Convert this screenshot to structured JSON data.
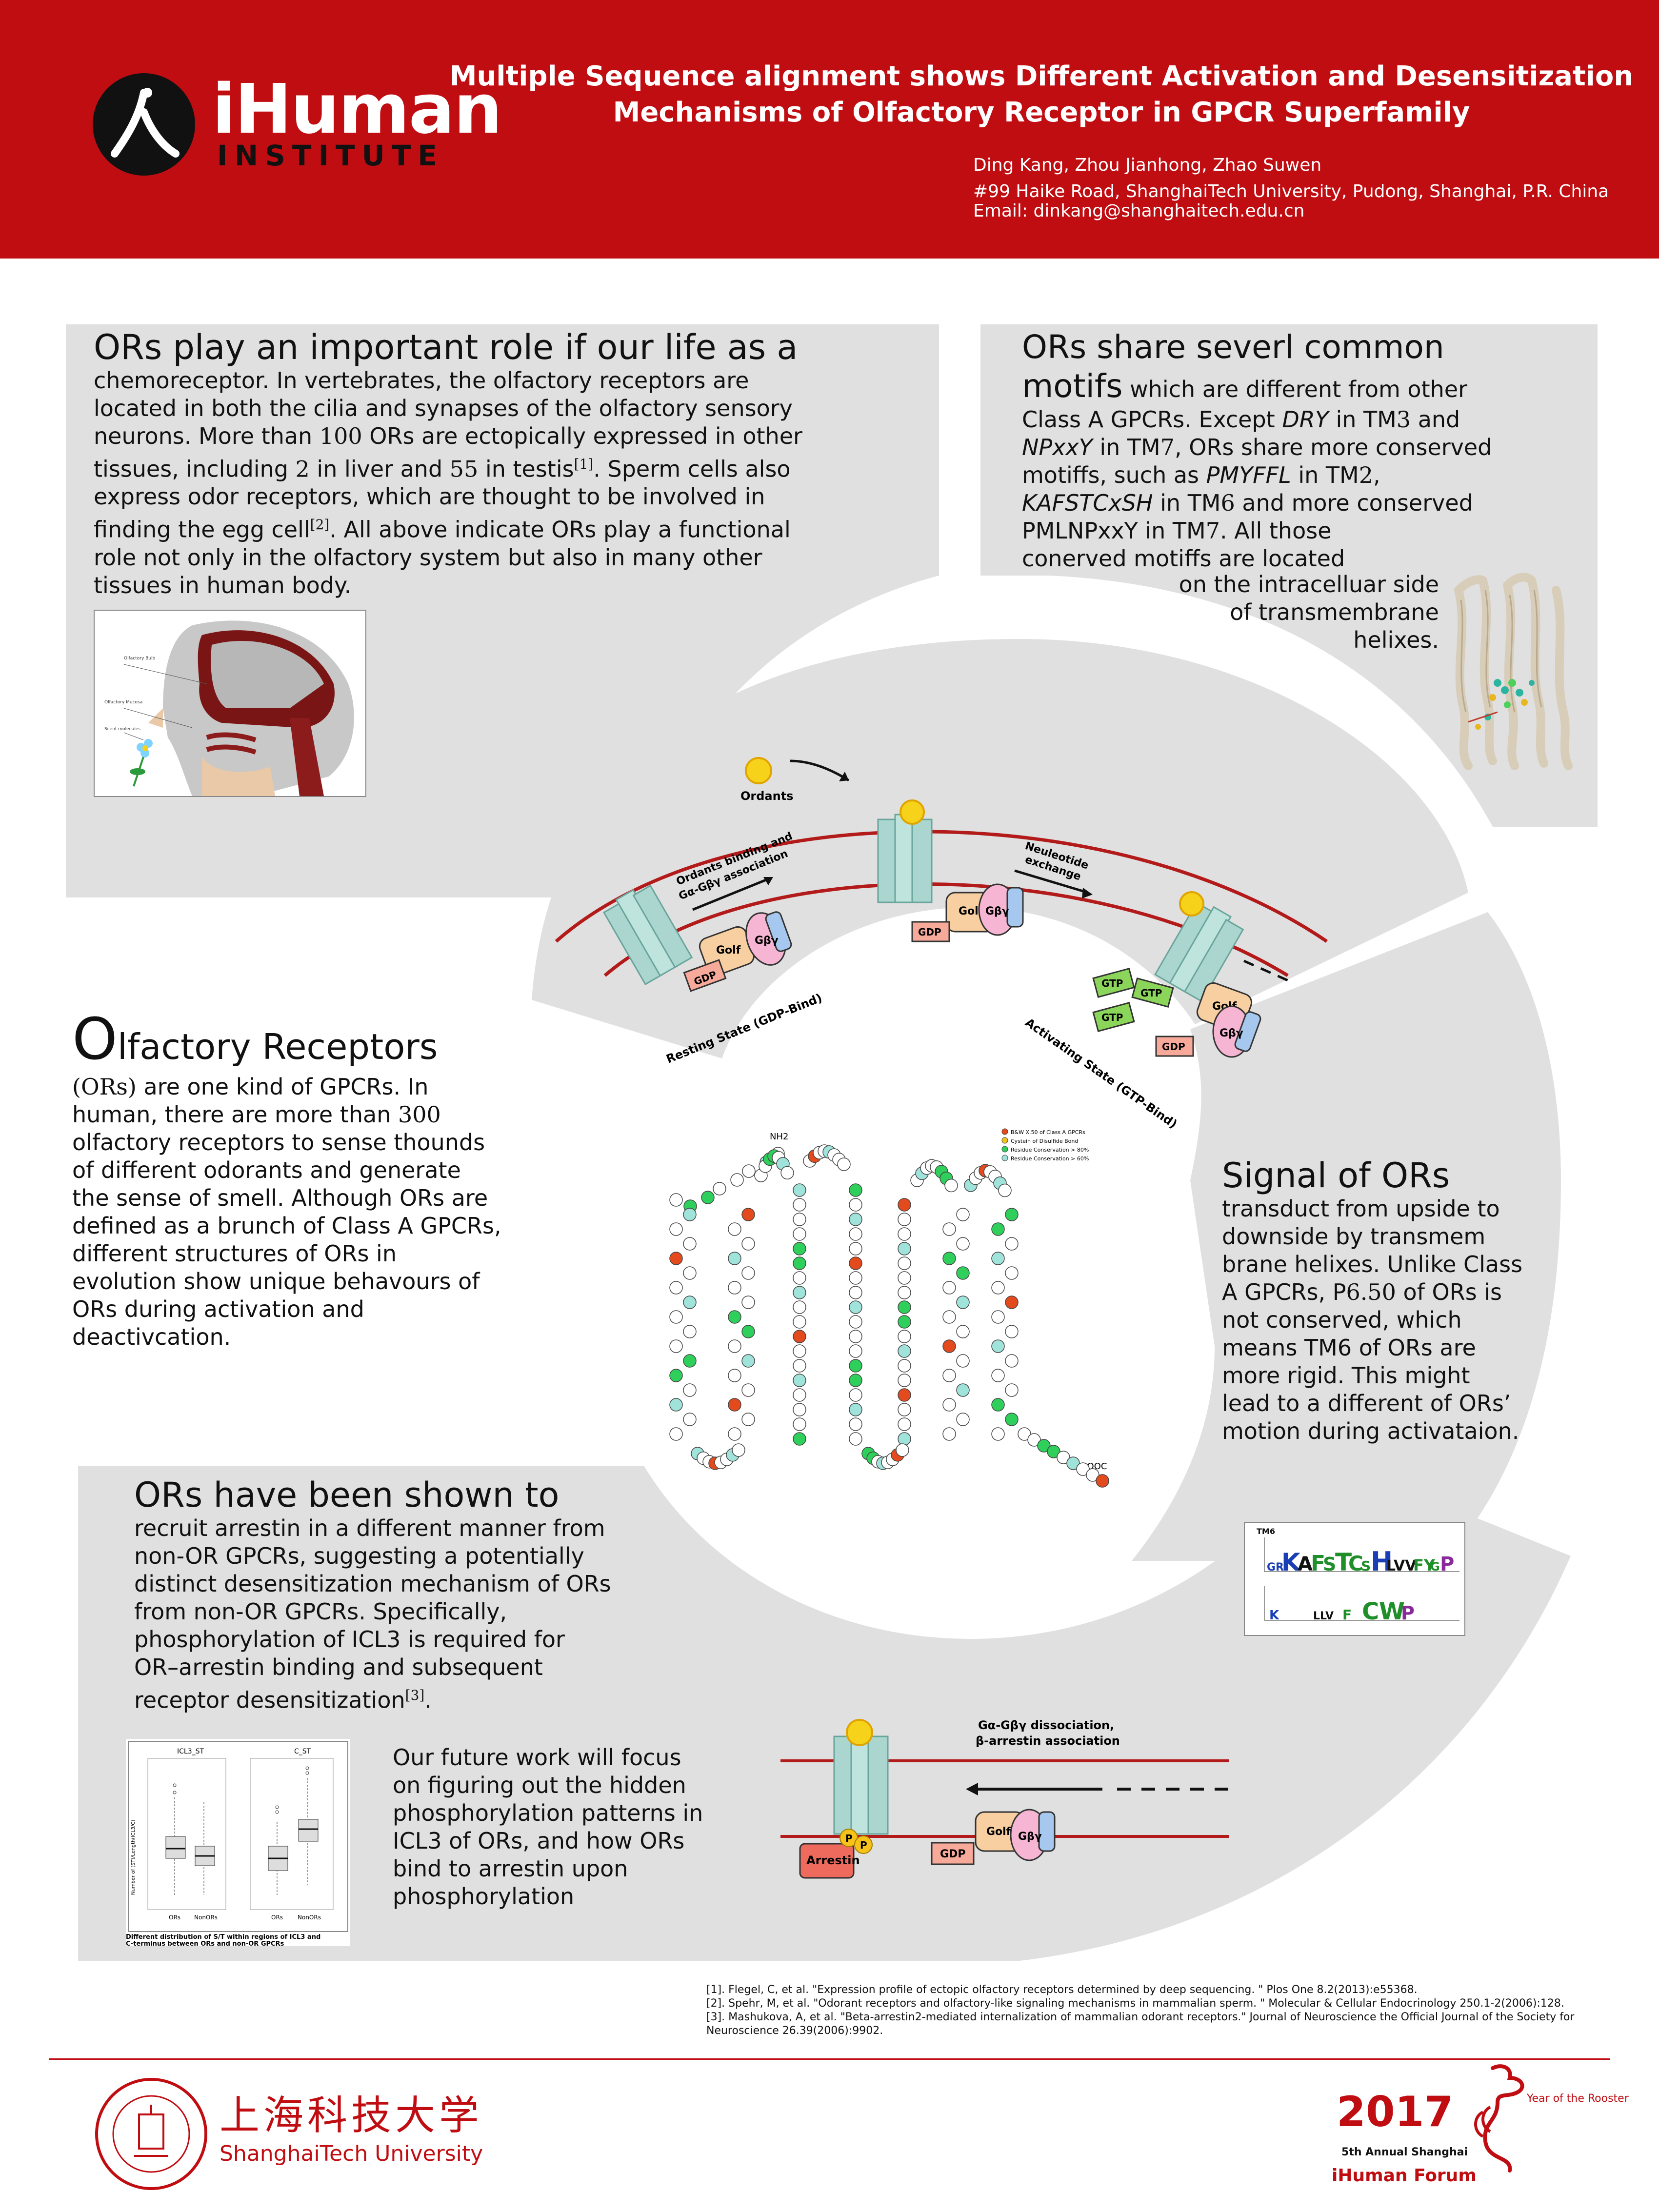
{
  "header": {
    "logo_name": "iHuman",
    "logo_sub": "INSTITUTE",
    "title_line1": "Multiple Sequence alignment shows Different Activation and Desensitization",
    "title_line2": "Mechanisms of Olfactory Receptor in GPCR Superfamily",
    "authors": "Ding Kang, Zhou Jianhong, Zhao Suwen",
    "address": "#99 Haike Road, ShanghaiTech University, Pudong, Shanghai, P.R. China",
    "email": "Email: dinkang@shanghaitech.edu.cn"
  },
  "panel1": {
    "heading": "ORs play an important role if our life as a",
    "t1": "chemoreceptor. In vertebrates, the olfactory receptors are",
    "t2": "located in both the cilia and synapses of the olfactory sensory",
    "t3a": "neurons. More than ",
    "t3n": "100",
    "t3b": " ORs are ectopically expressed in other",
    "t4a": "tissues, including ",
    "t4n1": "2",
    "t4b": " in liver and ",
    "t4n2": "55",
    "t4c": " in testis",
    "t4r": "[1]",
    "t4d": ". Sperm cells also",
    "t5": "express odor receptors, which are thought to be involved in",
    "t6a": "finding the egg cell",
    "t6r": "[2]",
    "t6b": ". All above indicate ORs play a functional",
    "t7": "role not only in the olfactory system but also in many other",
    "t8": "tissues in human body.",
    "fig_labels": [
      "Olfactory Bulb",
      "Olfactory Mucosa",
      "Scent molecules"
    ]
  },
  "panel2": {
    "heading1": "ORs share severl common",
    "heading2": "motifs",
    "h2rest": " which are different from other",
    "t1a": "Class A GPCRs. Except ",
    "t1m": "DRY",
    "t1b": " in TM",
    "t1n": "3",
    "t1c": " and",
    "t2m": "NPxxY",
    "t2a": " in TM",
    "t2n": "7",
    "t2b": ", ORs share more conserved",
    "t3a": "motiffs, such as ",
    "t3m": "PMYFFL",
    "t3b": " in TM",
    "t3n": "2",
    "t3c": ",",
    "t4m": "KAFSTCxSH",
    "t4a": " in TM",
    "t4n": "6",
    "t4b": " and more conserved",
    "t5a": "PMLNPxxY in TM",
    "t5n": "7",
    "t5b": ". All those",
    "t6": "conerved motiffs are located",
    "t7": "on the intracelluar side",
    "t8": "of transmembrane",
    "t9": "helixes."
  },
  "cycle": {
    "odorants": "Ordants",
    "binding1": "Ordants binding and",
    "binding2": "Gα-Gβγ association",
    "exchange1": "Neuleotide",
    "exchange2": "exchange",
    "resting": "Resting State (GDP-Bind)",
    "activating": "Activating State (GTP-Bind)",
    "gdp": "GDP",
    "gtp": "GTP",
    "golf": "Golf",
    "gby": "Gβγ"
  },
  "center": {
    "heading_big": "O",
    "heading_rest": "lfactory Receptors",
    "t1a": "(ORs)",
    "t1b": " are one kind of GPCRs. In",
    "t2a": "human, there are more than ",
    "t2n": "300",
    "t3": "olfactory receptors to sense thounds",
    "t4": "of different odorants and generate",
    "t5": "the sense of smell. Although ORs are",
    "t6": "defined as a brunch of Class A GPCRs,",
    "t7": "different structures of ORs in",
    "t8": "evolution show unique behavours of",
    "t9": "ORs during activation and",
    "t10": "deactivcation.",
    "snake_n": "NH2",
    "snake_c": "HOOC",
    "legend": [
      "B&W X.50 of Class A GPCRs",
      "Cystein of Disulfide Bond",
      "Residue Conservation > 80%",
      "Residue Conservation > 60%"
    ],
    "legend_colors": [
      "#e34a1e",
      "#f2c21a",
      "#2fcf5b",
      "#9fe3da"
    ]
  },
  "panel3": {
    "heading": "Signal of ORs",
    "t1": "transduct from upside to",
    "t2": "downside by transmem",
    "t3": "brane helixes. Unlike Class",
    "t4a": "A GPCRs, P",
    "t4n": "6.50",
    "t4b": " of ORs is",
    "t5": "not conserved, which",
    "t6": "means TM6 of ORs are",
    "t7": "more rigid. This might",
    "t8": "lead to a different of ORs’",
    "t9": "motion during activataion.",
    "logo_title": "TM6"
  },
  "panel4": {
    "heading": "ORs have been shown to",
    "t1": "recruit arrestin in a different manner from",
    "t2": "non-OR GPCRs, suggesting a potentially",
    "t3": "distinct desensitization mechanism of ORs",
    "t4": "from non-OR GPCRs. Specifically,",
    "t5": "phosphorylation of ICL3 is required for",
    "t6": "OR–arrestin binding and subsequent",
    "t7a": "receptor desensitization",
    "t7r": "[3]",
    "t7b": ".",
    "f1": "Our future work will focus",
    "f2": "on figuring out the hidden",
    "f3": "phosphorylation patterns in",
    "f4": "ICL3 of ORs, and how ORs",
    "f5": "bind to arrestin upon",
    "f6": "phosphorylation",
    "box_titles": [
      "ICL3_ST",
      "C_ST"
    ],
    "box_xlabels": [
      "ORs",
      "NonORs"
    ],
    "box_ylabel": "Number of (ST)/Length(ICL3/C)",
    "box_caption1": "Different distribution of S/T within regions of ICL3 and",
    "box_caption2": "C-terminus between ORs and non-OR GPCRs",
    "dissoc1": "Gα-Gβγ dissociation,",
    "dissoc2": "β-arrestin association",
    "arrestin": "Arrestin",
    "p": "P"
  },
  "refs": {
    "r1": "[1]. Flegel, C, et al. \"Expression profile of ectopic olfactory receptors determined by deep sequencing. \" Plos One 8.2(2013):e55368.",
    "r2": "[2]. Spehr, M, et al. \"Odorant receptors and olfactory-like signaling mechanisms in mammalian sperm. \" Molecular & Cellular Endocrinology 250.1-2(2006):128.",
    "r3": "[3]. Mashukova, A, et al. \"Beta-arrestin2-mediated internalization of mammalian odorant receptors.\" Journal of Neuroscience the Official Journal of the Society for",
    "r3b": "Neuroscience 26.39(2006):9902."
  },
  "footer": {
    "uni_cn": "上海科技大学",
    "uni_en": "ShanghaiTech University",
    "year": "2017",
    "rooster": "Year of the Rooster",
    "annual": "5th Annual Shanghai",
    "forum": "iHuman Forum"
  }
}
